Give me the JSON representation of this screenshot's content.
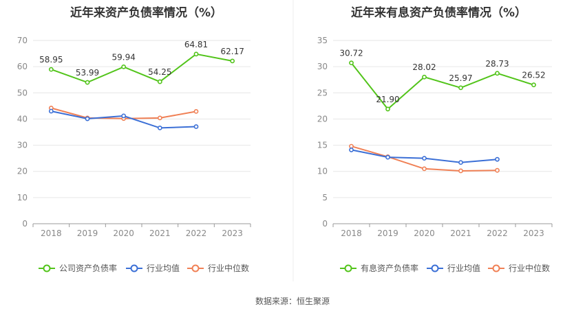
{
  "chart_data": [
    {
      "type": "line",
      "title": "近年来资产负债率情况（%）",
      "categories": [
        "2018",
        "2019",
        "2020",
        "2021",
        "2022",
        "2023"
      ],
      "ylim": [
        0,
        70
      ],
      "yticks": [
        0,
        10,
        20,
        30,
        40,
        50,
        60,
        70
      ],
      "grid": true,
      "legend_position": "bottom",
      "series": [
        {
          "name": "公司资产负债率",
          "color": "#52c41a",
          "values": [
            58.95,
            53.99,
            59.94,
            54.25,
            64.81,
            62.17
          ],
          "labels": [
            "58.95",
            "53.99",
            "59.94",
            "54.25",
            "64.81",
            "62.17"
          ]
        },
        {
          "name": "行业均值",
          "color": "#3b6fd6",
          "values": [
            43.0,
            40.1,
            41.2,
            36.6,
            37.1,
            null
          ],
          "labels": []
        },
        {
          "name": "行业中位数",
          "color": "#f08055",
          "values": [
            44.2,
            40.4,
            40.2,
            40.4,
            42.9,
            null
          ],
          "labels": []
        }
      ]
    },
    {
      "type": "line",
      "title": "近年来有息资产负债率情况（%）",
      "categories": [
        "2018",
        "2019",
        "2020",
        "2021",
        "2022",
        "2023"
      ],
      "ylim": [
        0,
        35
      ],
      "yticks": [
        0,
        5,
        10,
        15,
        20,
        25,
        30,
        35
      ],
      "grid": true,
      "legend_position": "bottom",
      "series": [
        {
          "name": "有息资产负债率",
          "color": "#52c41a",
          "values": [
            30.72,
            21.9,
            28.02,
            25.97,
            28.73,
            26.52
          ],
          "labels": [
            "30.72",
            "21.90",
            "28.02",
            "25.97",
            "28.73",
            "26.52"
          ]
        },
        {
          "name": "行业均值",
          "color": "#3b6fd6",
          "values": [
            14.1,
            12.7,
            12.5,
            11.7,
            12.3,
            null
          ],
          "labels": []
        },
        {
          "name": "行业中位数",
          "color": "#f08055",
          "values": [
            14.8,
            12.8,
            10.5,
            10.1,
            10.2,
            null
          ],
          "labels": []
        }
      ]
    }
  ],
  "footer": {
    "source": "数据来源：恒生聚源"
  }
}
